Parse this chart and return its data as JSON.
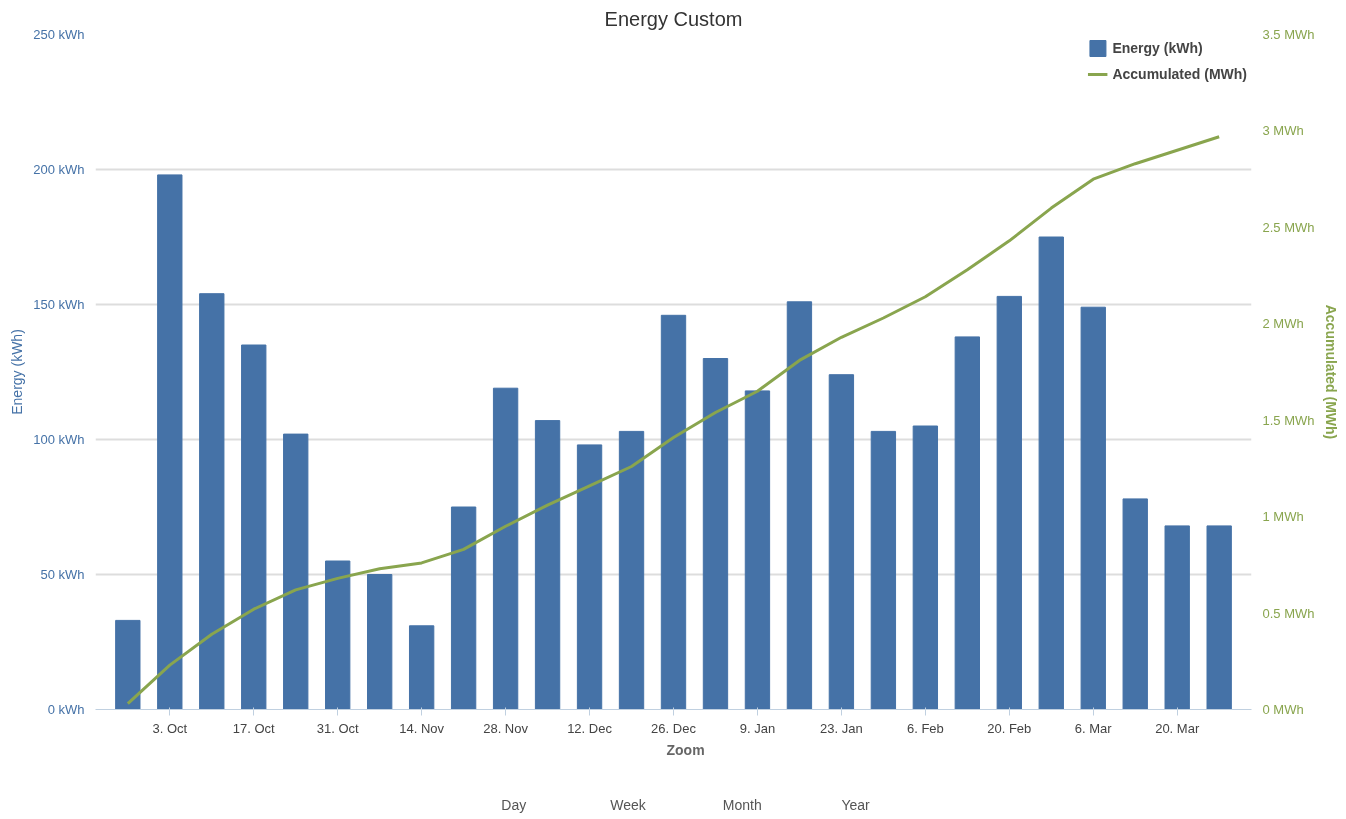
{
  "chart_data": {
    "type": "bar",
    "title": "Energy Custom",
    "ylabel": "Energy (kWh)",
    "y2label": "Accumulated (MWh)",
    "categories": [
      null,
      "3. Oct",
      null,
      "17. Oct",
      null,
      "31. Oct",
      null,
      "14. Nov",
      null,
      "28. Nov",
      null,
      "12. Dec",
      null,
      "26. Dec",
      null,
      "9. Jan",
      null,
      "23. Jan",
      null,
      "6. Feb",
      null,
      "20. Feb",
      null,
      "6. Mar",
      null,
      "20. Mar",
      null
    ],
    "series": [
      {
        "name": "Energy (kWh)",
        "color": "#4572a7",
        "values": [
          33,
          198,
          154,
          135,
          102,
          55,
          50,
          31,
          75,
          119,
          107,
          98,
          103,
          146,
          130,
          118,
          151,
          124,
          103,
          105,
          138,
          153,
          175,
          149,
          78,
          68,
          68
        ]
      },
      {
        "name": "Accumulated (MWh)",
        "type": "line",
        "axis": "y2",
        "color": "#89a54e",
        "values": [
          0.03,
          0.23,
          0.39,
          0.52,
          0.62,
          0.68,
          0.73,
          0.76,
          0.83,
          0.95,
          1.06,
          1.16,
          1.26,
          1.41,
          1.54,
          1.65,
          1.81,
          1.93,
          2.03,
          2.14,
          2.28,
          2.43,
          2.6,
          2.75,
          2.83,
          2.9,
          2.97
        ]
      }
    ],
    "ylim": [
      0,
      250
    ],
    "yticks": [
      {
        "value": 0,
        "label": "0 kWh"
      },
      {
        "value": 50,
        "label": "50 kWh"
      },
      {
        "value": 100,
        "label": "100 kWh"
      },
      {
        "value": 150,
        "label": "150 kWh"
      },
      {
        "value": 200,
        "label": "200 kWh"
      },
      {
        "value": 250,
        "label": "250 kWh"
      }
    ],
    "y2lim": [
      0,
      3.5
    ],
    "y2ticks": [
      {
        "value": 0,
        "label": "0 MWh"
      },
      {
        "value": 0.5,
        "label": "0.5 MWh"
      },
      {
        "value": 1,
        "label": "1 MWh"
      },
      {
        "value": 1.5,
        "label": "1.5 MWh"
      },
      {
        "value": 2,
        "label": "2 MWh"
      },
      {
        "value": 2.5,
        "label": "2.5 MWh"
      },
      {
        "value": 3,
        "label": "3 MWh"
      },
      {
        "value": 3.5,
        "label": "3.5 MWh"
      }
    ],
    "grid": "y",
    "legend": "top right",
    "marker": "none",
    "line_style": "solid",
    "annotations": [
      "Zoom",
      "Day",
      "Week",
      "Month",
      "Year"
    ]
  }
}
